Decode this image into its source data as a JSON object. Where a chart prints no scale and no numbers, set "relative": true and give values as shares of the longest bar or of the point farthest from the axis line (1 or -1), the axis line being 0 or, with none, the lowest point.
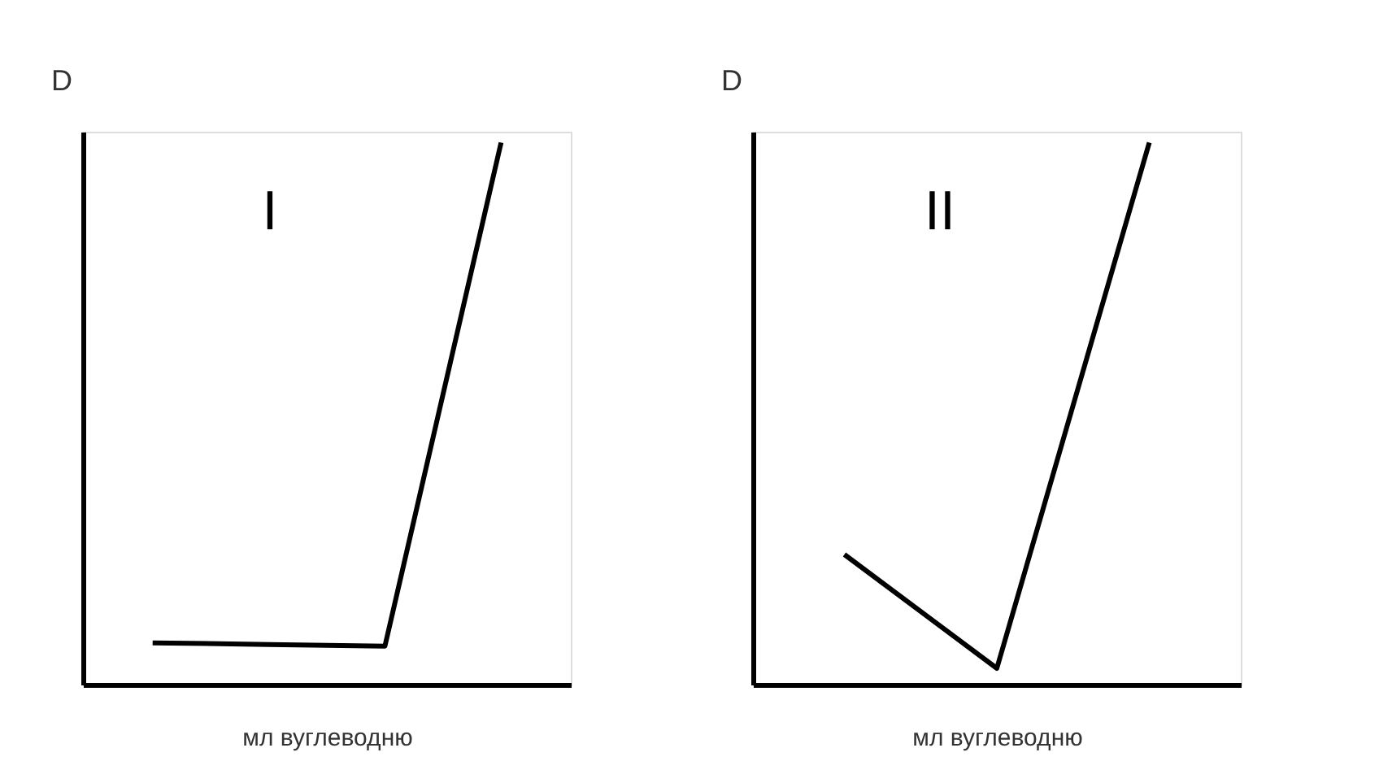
{
  "chart_data": [
    {
      "type": "line",
      "relative": true,
      "xlabel": "мл вуглеводню",
      "ylabel": "D",
      "annotations": [
        "I"
      ],
      "grid": false,
      "tick_labels": false,
      "marker": "none",
      "line_style": "solid",
      "categories": [
        null,
        null,
        null,
        null
      ],
      "series": [
        {
          "color": "#000000",
          "values": [
            0.077,
            0.074,
            0.071,
            1
          ]
        }
      ]
    },
    {
      "type": "line",
      "relative": true,
      "xlabel": "мл вуглеводню",
      "ylabel": "D",
      "annotations": [
        "II"
      ],
      "grid": false,
      "tick_labels": false,
      "marker": "none",
      "line_style": "solid",
      "categories": [
        null,
        null,
        null
      ],
      "series": [
        {
          "color": "#000000",
          "values": [
            0.24,
            0.03,
            1
          ]
        }
      ]
    }
  ]
}
